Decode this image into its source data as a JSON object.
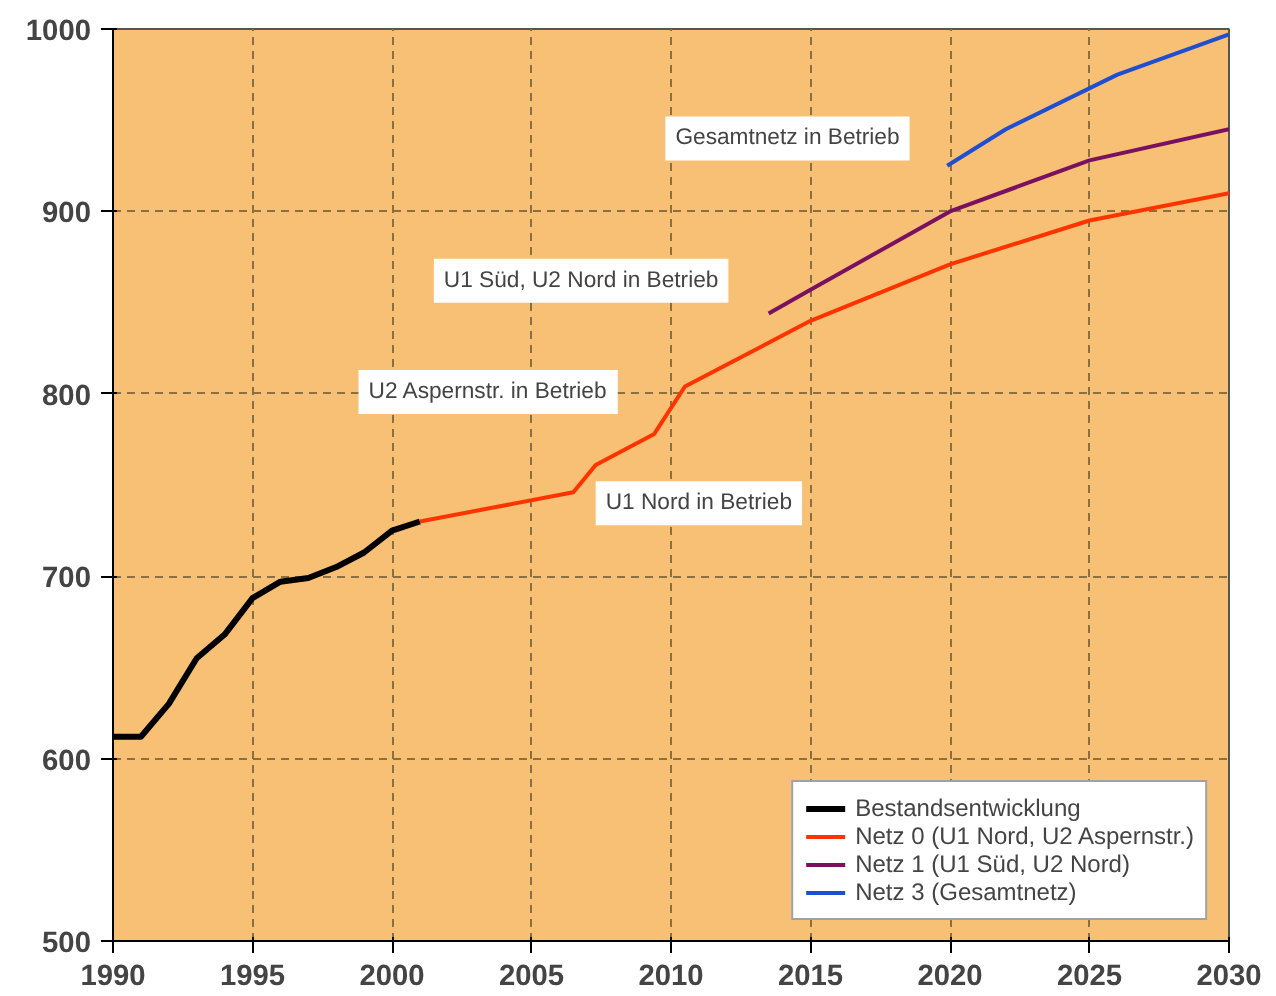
{
  "chart_data": {
    "type": "line",
    "xlim": [
      1990,
      2030
    ],
    "ylim": [
      500,
      1000
    ],
    "xticks": [
      1990,
      1995,
      2000,
      2005,
      2010,
      2015,
      2020,
      2025,
      2030
    ],
    "yticks": [
      500,
      600,
      700,
      800,
      900,
      1000
    ],
    "grid": true,
    "legend": "bottom right",
    "line_style": "solid",
    "marker": "none",
    "series": [
      {
        "name": "Bestandsentwicklung",
        "color": "#000000",
        "x": [
          1990,
          1991,
          1992,
          1993,
          1994,
          1995,
          1996,
          1997,
          1998,
          1999,
          2000,
          2001
        ],
        "values": [
          612,
          612,
          630,
          655,
          668,
          688,
          697,
          699,
          705,
          713,
          725,
          730
        ]
      },
      {
        "name": "Netz 0 (U1 Nord, U2 Aspernstr.)",
        "color": "#ff3300",
        "x": [
          2001,
          2006.5,
          2007.3,
          2009.4,
          2010.5,
          2015,
          2020,
          2025,
          2030
        ],
        "values": [
          730,
          746,
          761,
          778,
          804,
          840,
          871,
          895,
          910
        ]
      },
      {
        "name": "Netz 1 (U1 Süd, U2 Nord)",
        "color": "#7a1060",
        "x": [
          2013.5,
          2015,
          2020,
          2025,
          2030
        ],
        "values": [
          844,
          857,
          900,
          928,
          945
        ]
      },
      {
        "name": "Netz 3 (Gesamtnetz)",
        "color": "#1f4fd0",
        "x": [
          2019.9,
          2022,
          2026,
          2030
        ],
        "values": [
          925,
          945,
          975,
          997
        ]
      }
    ],
    "annotations": [
      "Gesamtnetz in Betrieb",
      "U1 Süd, U2 Nord in Betrieb",
      "U2 Aspernstr. in Betrieb",
      "U1 Nord in Betrieb"
    ]
  }
}
